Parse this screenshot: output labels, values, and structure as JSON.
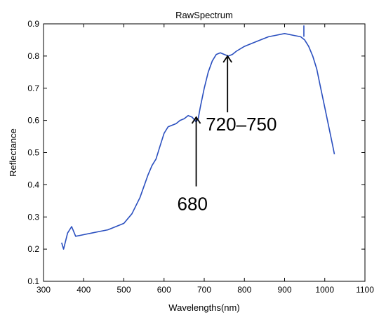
{
  "chart_data": {
    "type": "line",
    "title": "RawSpectrum",
    "xlabel": "Wavelengths(nm)",
    "ylabel": "Reflectance",
    "xlim": [
      300,
      1100
    ],
    "ylim": [
      0.1,
      0.9
    ],
    "xticks": [
      300,
      400,
      500,
      600,
      700,
      800,
      900,
      1000,
      1100
    ],
    "yticks": [
      0.1,
      0.2,
      0.3,
      0.4,
      0.5,
      0.6,
      0.7,
      0.8,
      0.9
    ],
    "grid": false,
    "line_color": "#2a4fbf",
    "series": [
      {
        "x": [
          345,
          350,
          360,
          370,
          380,
          400,
          420,
          440,
          460,
          480,
          500,
          520,
          540,
          560,
          570,
          580,
          590,
          600,
          610,
          620,
          630,
          640,
          650,
          660,
          670,
          680,
          685,
          690,
          700,
          710,
          720,
          730,
          740,
          750,
          760,
          770,
          780,
          800,
          820,
          840,
          860,
          880,
          900,
          920,
          940,
          950,
          960,
          970,
          980,
          990,
          1000,
          1010,
          1020,
          1024
        ],
        "y": [
          0.22,
          0.2,
          0.25,
          0.27,
          0.24,
          0.245,
          0.25,
          0.255,
          0.26,
          0.27,
          0.28,
          0.31,
          0.36,
          0.43,
          0.46,
          0.48,
          0.52,
          0.56,
          0.58,
          0.585,
          0.59,
          0.6,
          0.605,
          0.615,
          0.61,
          0.595,
          0.605,
          0.64,
          0.7,
          0.75,
          0.785,
          0.805,
          0.81,
          0.805,
          0.8,
          0.805,
          0.815,
          0.83,
          0.84,
          0.85,
          0.86,
          0.865,
          0.87,
          0.865,
          0.86,
          0.85,
          0.83,
          0.8,
          0.76,
          0.7,
          0.64,
          0.58,
          0.52,
          0.495
        ]
      }
    ],
    "spike": {
      "x": 948,
      "y_from": 0.86,
      "y_to": 0.895
    },
    "annotations": [
      {
        "text": "680",
        "x": 680,
        "y_tip": 0.61,
        "y_tail": 0.395
      },
      {
        "text": "720–750",
        "x": 758,
        "y_tip": 0.8,
        "y_tail": 0.625
      }
    ]
  }
}
